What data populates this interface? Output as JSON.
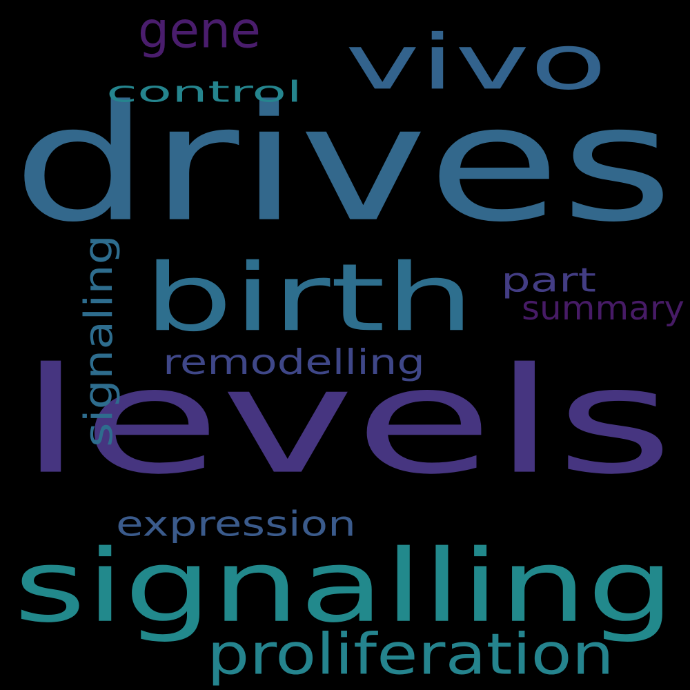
{
  "background": "#000000",
  "words": [
    {
      "id": "drives",
      "text": "drives",
      "color": "#33688c"
    },
    {
      "id": "levels",
      "text": "levels",
      "color": "#463580"
    },
    {
      "id": "signalling",
      "text": "signalling",
      "color": "#22898c"
    },
    {
      "id": "birth",
      "text": "birth",
      "color": "#2e6f8e"
    },
    {
      "id": "vivo",
      "text": "vivo",
      "color": "#33638d"
    },
    {
      "id": "proliferation",
      "text": "proliferation",
      "color": "#25848e"
    },
    {
      "id": "expression",
      "text": "expression",
      "color": "#3b5b8c"
    },
    {
      "id": "gene",
      "text": "gene",
      "color": "#4a1d6d"
    },
    {
      "id": "control",
      "text": "control",
      "color": "#25858e"
    },
    {
      "id": "signaling",
      "text": "signaling",
      "color": "#2e6d8e"
    },
    {
      "id": "remodelling",
      "text": "remodelling",
      "color": "#3f4788"
    },
    {
      "id": "part",
      "text": "part",
      "color": "#433d84"
    },
    {
      "id": "summary",
      "text": "summary",
      "color": "#471b66"
    }
  ]
}
